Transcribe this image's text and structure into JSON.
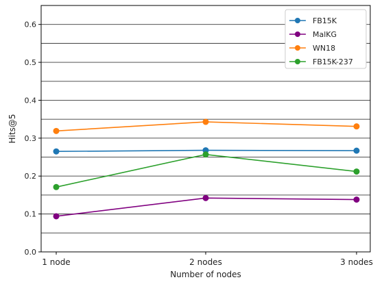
{
  "chart_data": {
    "type": "line",
    "title": "",
    "xlabel": "Number of nodes",
    "ylabel": "Hits@5",
    "categories": [
      "1 node",
      "2 nodes",
      "3 nodes"
    ],
    "ylim": [
      0.0,
      0.65
    ],
    "yticks": [
      0.0,
      0.1,
      0.2,
      0.3,
      0.4,
      0.5,
      0.6
    ],
    "ytick_labels": [
      "0.0",
      "0.1",
      "0.2",
      "0.3",
      "0.4",
      "0.5",
      "0.6"
    ],
    "grid": "horizontal",
    "legend_position": "top-right",
    "series": [
      {
        "name": "FB15K",
        "color": "#1f77b4",
        "values": [
          0.265,
          0.268,
          0.267
        ]
      },
      {
        "name": "MalKG",
        "color": "#800080",
        "values": [
          0.094,
          0.142,
          0.138
        ]
      },
      {
        "name": "WN18",
        "color": "#ff7f0e",
        "values": [
          0.319,
          0.343,
          0.331
        ]
      },
      {
        "name": "FB15K-237",
        "color": "#2ca02c",
        "values": [
          0.171,
          0.257,
          0.212
        ]
      }
    ]
  }
}
